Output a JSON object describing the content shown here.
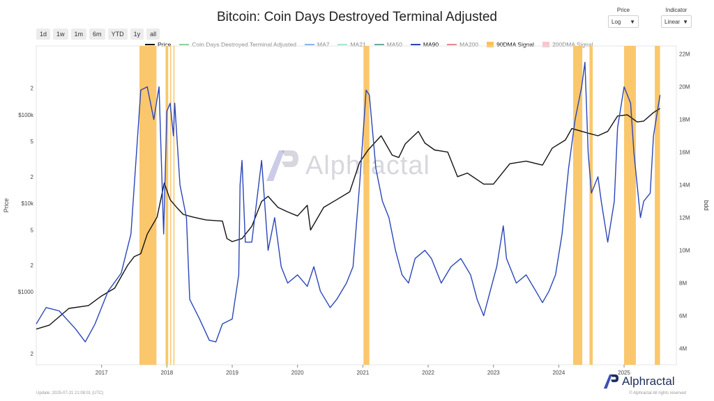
{
  "title": "Bitcoin: Coin Days Destroyed Terminal Adjusted",
  "range_buttons": [
    "1d",
    "1w",
    "1m",
    "6m",
    "YTD",
    "1y",
    "all"
  ],
  "price_control": {
    "label": "Price",
    "value": "Log"
  },
  "indicator_control": {
    "label": "Indicator",
    "value": "Linear"
  },
  "watermark": "Alphractal",
  "brand": "Alphractal",
  "footer_left": "Update: 2025-07-21 21:08:01 (UTC)",
  "footer_right": "© Alphractal All rights reserved",
  "colors": {
    "price": "#111111",
    "ma90": "#2a45b8",
    "signal90": "#f9c15c",
    "signal200": "#f6c6cc"
  },
  "chart_data": {
    "type": "line",
    "legend": [
      {
        "name": "Price",
        "color": "#111111",
        "kind": "line"
      },
      {
        "name": "Coin Days Destroyed Terminal Adjusted",
        "color": "#8fd19e",
        "kind": "line"
      },
      {
        "name": "MA7",
        "color": "#8ab4e8",
        "kind": "line"
      },
      {
        "name": "MA21",
        "color": "#a8e6c8",
        "kind": "line"
      },
      {
        "name": "MA50",
        "color": "#6fa8a0",
        "kind": "line"
      },
      {
        "name": "MA90",
        "color": "#2a45b8",
        "kind": "line"
      },
      {
        "name": "MA200",
        "color": "#e38a8a",
        "kind": "line"
      },
      {
        "name": "90DMA Signal",
        "color": "#f9c15c",
        "kind": "area"
      },
      {
        "name": "200DMA Signal",
        "color": "#f6c6cc",
        "kind": "area"
      }
    ],
    "x_ticks": [
      "2017",
      "2018",
      "2019",
      "2020",
      "2021",
      "2022",
      "2023",
      "2024",
      "2025"
    ],
    "left_axis": {
      "label": "Price",
      "scale": "log",
      "range": [
        150,
        600000
      ],
      "ticks": [
        "2",
        "$1000",
        "2",
        "5",
        "$10k",
        "2",
        "5",
        "$100k",
        "2"
      ]
    },
    "right_axis": {
      "label": "bdd",
      "range": [
        3000000,
        22500000
      ],
      "ticks": [
        "4M",
        "6M",
        "8M",
        "10M",
        "12M",
        "14M",
        "16M",
        "18M",
        "20M",
        "22M"
      ]
    },
    "series": [
      {
        "name": "Price",
        "axis": "left",
        "points": [
          [
            2016.0,
            380
          ],
          [
            2016.2,
            420
          ],
          [
            2016.5,
            650
          ],
          [
            2016.8,
            700
          ],
          [
            2017.0,
            900
          ],
          [
            2017.2,
            1100
          ],
          [
            2017.4,
            2000
          ],
          [
            2017.5,
            2500
          ],
          [
            2017.6,
            2700
          ],
          [
            2017.7,
            4500
          ],
          [
            2017.85,
            7000
          ],
          [
            2017.96,
            17000
          ],
          [
            2018.05,
            11000
          ],
          [
            2018.15,
            9000
          ],
          [
            2018.25,
            7500
          ],
          [
            2018.4,
            7000
          ],
          [
            2018.6,
            6500
          ],
          [
            2018.85,
            6300
          ],
          [
            2018.92,
            4000
          ],
          [
            2019.0,
            3700
          ],
          [
            2019.15,
            4000
          ],
          [
            2019.3,
            5500
          ],
          [
            2019.45,
            10500
          ],
          [
            2019.55,
            12000
          ],
          [
            2019.7,
            9000
          ],
          [
            2019.85,
            8000
          ],
          [
            2020.0,
            7200
          ],
          [
            2020.15,
            9500
          ],
          [
            2020.2,
            5000
          ],
          [
            2020.4,
            9000
          ],
          [
            2020.6,
            11000
          ],
          [
            2020.8,
            13500
          ],
          [
            2020.95,
            29000
          ],
          [
            2021.08,
            40000
          ],
          [
            2021.28,
            58000
          ],
          [
            2021.45,
            35000
          ],
          [
            2021.55,
            33000
          ],
          [
            2021.65,
            47000
          ],
          [
            2021.85,
            65000
          ],
          [
            2021.95,
            48000
          ],
          [
            2022.1,
            40000
          ],
          [
            2022.3,
            38000
          ],
          [
            2022.45,
            20000
          ],
          [
            2022.6,
            22000
          ],
          [
            2022.85,
            16500
          ],
          [
            2023.0,
            16500
          ],
          [
            2023.25,
            28000
          ],
          [
            2023.5,
            30000
          ],
          [
            2023.75,
            27000
          ],
          [
            2023.9,
            42000
          ],
          [
            2024.1,
            52000
          ],
          [
            2024.2,
            70000
          ],
          [
            2024.45,
            62000
          ],
          [
            2024.6,
            58000
          ],
          [
            2024.75,
            65000
          ],
          [
            2024.9,
            97000
          ],
          [
            2025.05,
            100000
          ],
          [
            2025.2,
            83000
          ],
          [
            2025.3,
            85000
          ],
          [
            2025.45,
            106000
          ],
          [
            2025.55,
            118000
          ]
        ]
      },
      {
        "name": "MA90",
        "axis": "right",
        "points": [
          [
            2016.0,
            5500000.0
          ],
          [
            2016.15,
            6500000.0
          ],
          [
            2016.35,
            6300000.0
          ],
          [
            2016.6,
            5200000.0
          ],
          [
            2016.75,
            4400000.0
          ],
          [
            2016.9,
            5500000.0
          ],
          [
            2017.1,
            7500000.0
          ],
          [
            2017.3,
            8600000.0
          ],
          [
            2017.45,
            11000000.0
          ],
          [
            2017.6,
            19800000.0
          ],
          [
            2017.7,
            20000000.0
          ],
          [
            2017.8,
            18000000.0
          ],
          [
            2017.88,
            20000000.0
          ],
          [
            2017.95,
            11000000.0
          ],
          [
            2018.0,
            18500000.0
          ],
          [
            2018.05,
            19000000.0
          ],
          [
            2018.1,
            17000000.0
          ],
          [
            2018.12,
            19000000.0
          ],
          [
            2018.2,
            14000000.0
          ],
          [
            2018.3,
            12000000.0
          ],
          [
            2018.35,
            7000000.0
          ],
          [
            2018.5,
            5800000.0
          ],
          [
            2018.65,
            4500000.0
          ],
          [
            2018.75,
            4400000.0
          ],
          [
            2018.85,
            5500000.0
          ],
          [
            2019.0,
            5800000.0
          ],
          [
            2019.1,
            8500000.0
          ],
          [
            2019.12,
            14000000.0
          ],
          [
            2019.15,
            15500000.0
          ],
          [
            2019.2,
            10500000.0
          ],
          [
            2019.3,
            10500000.0
          ],
          [
            2019.45,
            15500000.0
          ],
          [
            2019.55,
            10000000.0
          ],
          [
            2019.65,
            12000000.0
          ],
          [
            2019.75,
            9000000.0
          ],
          [
            2019.85,
            8000000.0
          ],
          [
            2020.0,
            8500000.0
          ],
          [
            2020.15,
            7800000.0
          ],
          [
            2020.25,
            9000000.0
          ],
          [
            2020.35,
            7500000.0
          ],
          [
            2020.5,
            6500000.0
          ],
          [
            2020.6,
            7000000.0
          ],
          [
            2020.75,
            8000000.0
          ],
          [
            2020.85,
            9000000.0
          ],
          [
            2020.95,
            14000000.0
          ],
          [
            2021.05,
            19800000.0
          ],
          [
            2021.1,
            19500000.0
          ],
          [
            2021.2,
            15000000.0
          ],
          [
            2021.3,
            13000000.0
          ],
          [
            2021.4,
            12000000.0
          ],
          [
            2021.5,
            10000000.0
          ],
          [
            2021.6,
            8500000.0
          ],
          [
            2021.7,
            8000000.0
          ],
          [
            2021.8,
            9500000.0
          ],
          [
            2021.95,
            10000000.0
          ],
          [
            2022.05,
            9500000.0
          ],
          [
            2022.2,
            8000000.0
          ],
          [
            2022.35,
            9000000.0
          ],
          [
            2022.5,
            9500000.0
          ],
          [
            2022.65,
            8500000.0
          ],
          [
            2022.75,
            7000000.0
          ],
          [
            2022.85,
            6000000.0
          ],
          [
            2022.95,
            7500000.0
          ],
          [
            2023.05,
            9000000.0
          ],
          [
            2023.15,
            11500000.0
          ],
          [
            2023.2,
            9500000.0
          ],
          [
            2023.35,
            8000000.0
          ],
          [
            2023.5,
            8500000.0
          ],
          [
            2023.65,
            7500000.0
          ],
          [
            2023.75,
            6800000.0
          ],
          [
            2023.85,
            7500000.0
          ],
          [
            2023.95,
            8500000.0
          ],
          [
            2024.05,
            11000000.0
          ],
          [
            2024.15,
            15000000.0
          ],
          [
            2024.25,
            18000000.0
          ],
          [
            2024.35,
            20000000.0
          ],
          [
            2024.4,
            21500000.0
          ],
          [
            2024.45,
            16000000.0
          ],
          [
            2024.5,
            13500000.0
          ],
          [
            2024.6,
            14500000.0
          ],
          [
            2024.65,
            13000000.0
          ],
          [
            2024.75,
            10500000.0
          ],
          [
            2024.85,
            13000000.0
          ],
          [
            2024.9,
            17500000.0
          ],
          [
            2025.0,
            20000000.0
          ],
          [
            2025.1,
            19000000.0
          ],
          [
            2025.15,
            16000000.0
          ],
          [
            2025.25,
            12000000.0
          ],
          [
            2025.3,
            13000000.0
          ],
          [
            2025.4,
            13500000.0
          ],
          [
            2025.45,
            17000000.0
          ],
          [
            2025.55,
            19500000.0
          ]
        ]
      }
    ],
    "signal_90dma": [
      [
        2017.58,
        2017.84
      ],
      [
        2017.98,
        2018.02
      ],
      [
        2018.05,
        2018.06
      ],
      [
        2018.1,
        2018.11
      ],
      [
        2021.01,
        2021.1
      ],
      [
        2024.22,
        2024.36
      ],
      [
        2024.47,
        2024.52
      ],
      [
        2025.0,
        2025.18
      ],
      [
        2025.47,
        2025.55
      ]
    ]
  }
}
